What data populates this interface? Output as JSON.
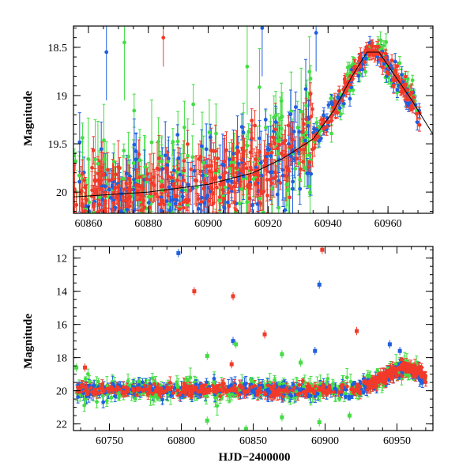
{
  "chart_data": [
    {
      "panel": "top",
      "type": "scatter",
      "title": "",
      "xlabel": "",
      "ylabel": "Magnitude",
      "xlim": [
        60855,
        60975
      ],
      "ylim": [
        20.22,
        18.28
      ],
      "y_inverted": true,
      "xticks": [
        60860,
        60880,
        60900,
        60920,
        60940,
        60960
      ],
      "yticks": [
        18.5,
        19,
        19.5,
        20
      ],
      "xtick_labels": [
        "60860",
        "60880",
        "60900",
        "60920",
        "60940",
        "60960"
      ],
      "ytick_labels": [
        "18.5",
        "19",
        "19.5",
        "20"
      ],
      "model_curve": {
        "color": "#000000",
        "x": [
          60855,
          60880,
          60900,
          60915,
          60925,
          60935,
          60942,
          60948,
          60953,
          60957,
          60962,
          60968,
          60975
        ],
        "y": [
          20.05,
          20.0,
          19.92,
          19.8,
          19.65,
          19.45,
          19.15,
          18.8,
          18.55,
          18.55,
          18.78,
          19.05,
          19.4
        ]
      },
      "series": [
        {
          "name": "blue",
          "color": "#1f5fe0",
          "note": "dense scatter with error bars, baseline ~19.9 before 60930, brightening to ~18.5 peak near 60955"
        },
        {
          "name": "green",
          "color": "#44dd44",
          "note": "dense scatter with error bars, larger scatter, same trend"
        },
        {
          "name": "red",
          "color": "#f23a2a",
          "note": "dense scatter with error bars, same trend"
        }
      ]
    },
    {
      "panel": "bottom",
      "type": "scatter",
      "title": "",
      "xlabel": "HJD−2400000",
      "ylabel": "Magnitude",
      "xlim": [
        60725,
        60975
      ],
      "ylim": [
        22.4,
        11.3
      ],
      "y_inverted": true,
      "xticks": [
        60750,
        60800,
        60850,
        60900,
        60950
      ],
      "yticks": [
        12,
        14,
        16,
        18,
        20,
        22
      ],
      "xtick_labels": [
        "60750",
        "60800",
        "60850",
        "60900",
        "60950"
      ],
      "ytick_labels": [
        "12",
        "14",
        "16",
        "18",
        "20",
        "22"
      ],
      "outliers": [
        {
          "series": "blue",
          "x": 60798,
          "y": 11.7
        },
        {
          "series": "red",
          "x": 60898,
          "y": 11.5
        },
        {
          "series": "blue",
          "x": 60896,
          "y": 13.6
        },
        {
          "series": "red",
          "x": 60809,
          "y": 14.0
        },
        {
          "series": "red",
          "x": 60836,
          "y": 14.3
        },
        {
          "series": "blue",
          "x": 60836,
          "y": 17.0
        },
        {
          "series": "green",
          "x": 60838,
          "y": 17.2
        },
        {
          "series": "red",
          "x": 60858,
          "y": 16.6
        },
        {
          "series": "red",
          "x": 60922,
          "y": 16.4
        },
        {
          "series": "red",
          "x": 60733,
          "y": 18.6
        },
        {
          "series": "red",
          "x": 60835,
          "y": 18.4
        },
        {
          "series": "green",
          "x": 60727,
          "y": 18.6
        },
        {
          "series": "blue",
          "x": 60893,
          "y": 17.6
        },
        {
          "series": "blue",
          "x": 60945,
          "y": 17.2
        },
        {
          "series": "blue",
          "x": 60952,
          "y": 17.6
        },
        {
          "series": "green",
          "x": 60883,
          "y": 18.3
        },
        {
          "series": "green",
          "x": 60870,
          "y": 17.8
        },
        {
          "series": "green",
          "x": 60818,
          "y": 17.9
        },
        {
          "series": "green",
          "x": 60870,
          "y": 21.6
        },
        {
          "series": "green",
          "x": 60818,
          "y": 21.8
        },
        {
          "series": "green",
          "x": 60845,
          "y": 22.3
        },
        {
          "series": "green",
          "x": 60896,
          "y": 21.9
        },
        {
          "series": "green",
          "x": 60917,
          "y": 21.5
        }
      ],
      "series": [
        {
          "name": "blue",
          "color": "#1f5fe0",
          "note": "baseline ~20 from 60725 to 60925, rise to ~18.6 near 60955"
        },
        {
          "name": "green",
          "color": "#44dd44",
          "note": "baseline ~20 with wider scatter 18.5-22"
        },
        {
          "name": "red",
          "color": "#f23a2a",
          "note": "baseline ~20, dense red band, same outburst"
        }
      ]
    }
  ]
}
